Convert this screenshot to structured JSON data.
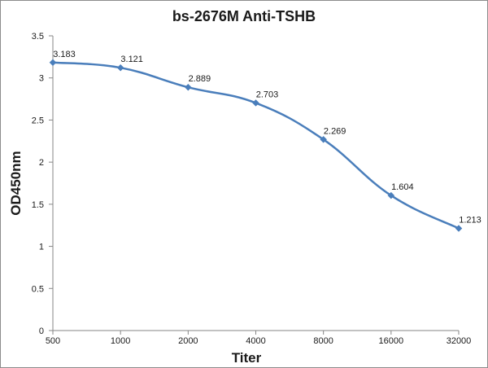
{
  "chart_data": {
    "type": "line",
    "title": "bs-2676M Anti-TSHB",
    "xlabel": "Titer",
    "ylabel": "OD450nm",
    "categories": [
      "500",
      "1000",
      "2000",
      "4000",
      "8000",
      "16000",
      "32000"
    ],
    "series": [
      {
        "values": [
          3.183,
          3.121,
          2.889,
          2.703,
          2.269,
          1.604,
          1.213
        ],
        "color": "#4a7ebb",
        "smooth": true,
        "marker": "diamond"
      }
    ],
    "data_labels": [
      "3.183",
      "3.121",
      "2.889",
      "2.703",
      "2.269",
      "1.604",
      "1.213"
    ],
    "y_ticks": [
      "0",
      "0.5",
      "1",
      "1.5",
      "2",
      "2.5",
      "3",
      "3.5"
    ],
    "ylim": [
      0,
      3.5
    ],
    "grid": false,
    "legend": "none"
  }
}
